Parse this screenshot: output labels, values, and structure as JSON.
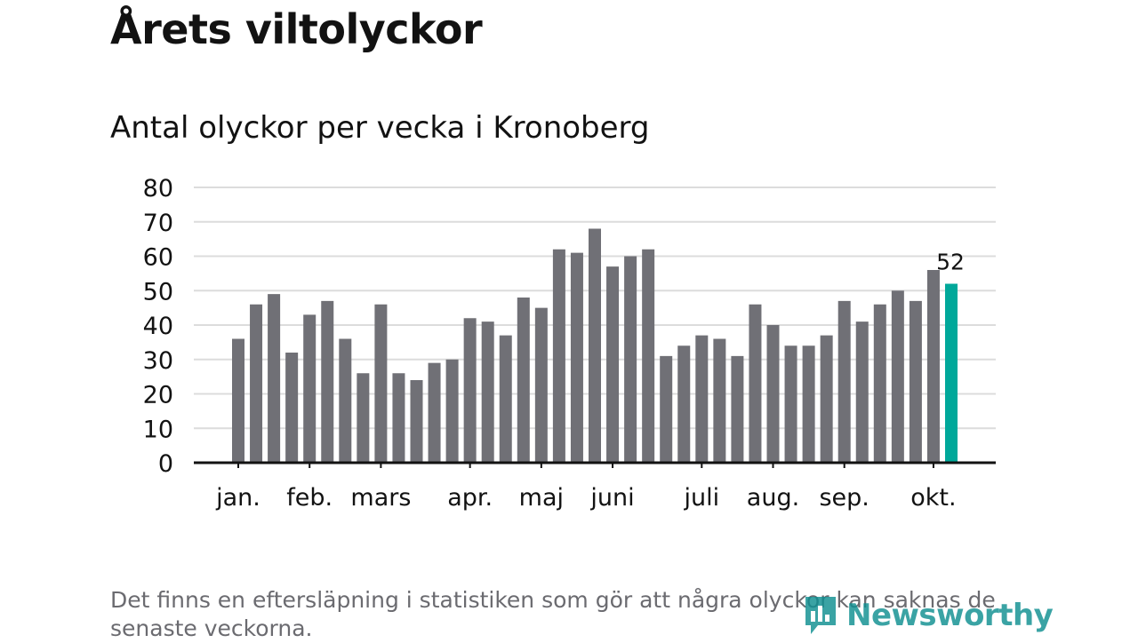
{
  "title": "Årets viltolyckor",
  "subtitle": "Antal olyckor per vecka i Kronoberg",
  "footnote": "Det finns en eftersläpning i statistiken som gör att några olyckor kan saknas de senaste veckorna.",
  "logo": {
    "text": "Newsworthy",
    "icon": "newsworthy-logo-icon"
  },
  "colors": {
    "bar": "#707076",
    "highlight": "#00a89a",
    "grid": "#dcdcdc",
    "axis": "#121212",
    "text": "#121212",
    "muted": "#6b6b70",
    "brand": "#0f8f91"
  },
  "chart_data": {
    "type": "bar",
    "title": "Årets viltolyckor",
    "subtitle": "Antal olyckor per vecka i Kronoberg",
    "xlabel": "",
    "ylabel": "",
    "ylim": [
      0,
      80
    ],
    "yticks": [
      "0",
      "10",
      "20",
      "30",
      "40",
      "50",
      "60",
      "70",
      "80"
    ],
    "grid": true,
    "weeks": [
      1,
      2,
      3,
      4,
      5,
      6,
      7,
      8,
      9,
      10,
      11,
      12,
      13,
      14,
      15,
      16,
      17,
      18,
      19,
      20,
      21,
      22,
      23,
      24,
      25,
      26,
      27,
      28,
      29,
      30,
      31,
      32,
      33,
      34,
      35,
      36,
      37,
      38,
      39,
      40,
      41
    ],
    "values": [
      36,
      46,
      49,
      32,
      43,
      47,
      36,
      26,
      46,
      26,
      24,
      29,
      30,
      42,
      41,
      37,
      48,
      45,
      62,
      61,
      68,
      57,
      60,
      62,
      31,
      34,
      37,
      36,
      31,
      46,
      40,
      34,
      34,
      37,
      47,
      41,
      46,
      50,
      47,
      56,
      52
    ],
    "highlight_index": 40,
    "highlight_label": "52",
    "month_labels": [
      {
        "label": "jan.",
        "week": 1
      },
      {
        "label": "feb.",
        "week": 5
      },
      {
        "label": "mars",
        "week": 9
      },
      {
        "label": "apr.",
        "week": 14
      },
      {
        "label": "maj",
        "week": 18
      },
      {
        "label": "juni",
        "week": 22
      },
      {
        "label": "juli",
        "week": 27
      },
      {
        "label": "aug.",
        "week": 31
      },
      {
        "label": "sep.",
        "week": 35
      },
      {
        "label": "okt.",
        "week": 40
      }
    ]
  }
}
